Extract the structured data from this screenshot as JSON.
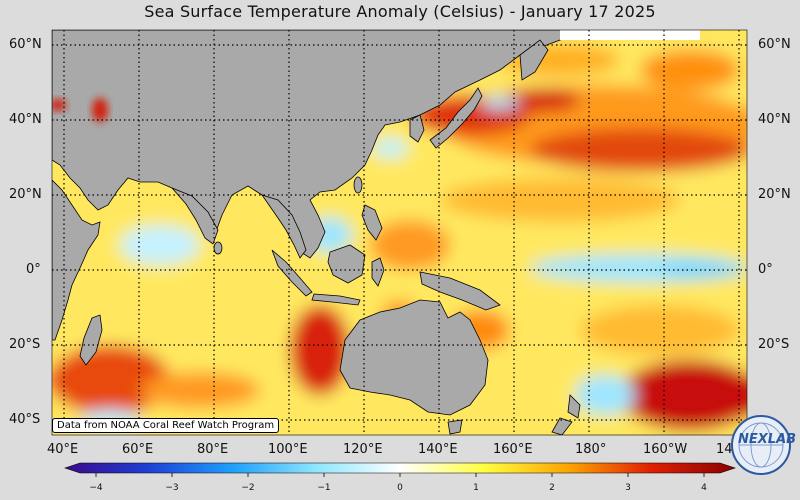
{
  "title": "Sea Surface Temperature Anomaly (Celsius) - January 17 2025",
  "lat_labels": [
    "60°N",
    "40°N",
    "20°N",
    "0°",
    "20°S",
    "40°S"
  ],
  "lon_labels": [
    "40°E",
    "60°E",
    "80°E",
    "100°E",
    "120°E",
    "140°E",
    "160°E",
    "180°",
    "160°W",
    "14"
  ],
  "credit": "Data from NOAA Coral Reef Watch Program",
  "colorbar": {
    "ticks": [
      "−4",
      "−3",
      "−2",
      "−1",
      "0",
      "1",
      "2",
      "3",
      "4"
    ],
    "min": -4,
    "max": 4,
    "colors": [
      "#3a0a8c",
      "#1f3fd6",
      "#1ea0ff",
      "#8fe6ff",
      "#ffffff",
      "#ffff40",
      "#ffa500",
      "#e02000",
      "#8b0000"
    ]
  },
  "logo": {
    "text": "NEXLAB",
    "icon": "globe-logo-icon"
  },
  "colors": {
    "land": "#a9a9a9",
    "ocean_warm": "#ffd000",
    "ocean_hot": "#d01010",
    "ocean_cool": "#a6ecff",
    "background": "#dcdcdc"
  }
}
